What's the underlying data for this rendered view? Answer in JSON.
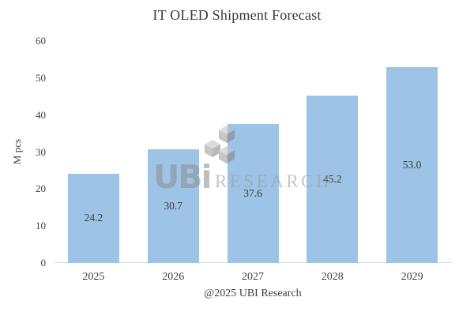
{
  "title": "IT OLED Shipment Forecast",
  "footer": "@2025 UBI Research",
  "watermark": {
    "brand": "UBi",
    "suffix": "RESEARCH"
  },
  "colors": {
    "bar": "#9DC3E6",
    "text": "#404040",
    "axis_line": "#D9D9D9",
    "watermark_grey": "#9A9A9A"
  },
  "chart_data": {
    "type": "bar",
    "title": "IT OLED Shipment Forecast",
    "categories": [
      "2025",
      "2026",
      "2027",
      "2028",
      "2029"
    ],
    "values": [
      24.2,
      30.7,
      37.6,
      45.2,
      53.0
    ],
    "value_labels": [
      "24.2",
      "30.7",
      "37.6",
      "45.2",
      "53.0"
    ],
    "xlabel": "",
    "ylabel": "M pcs",
    "ylim": [
      0,
      60
    ],
    "yticks": [
      0,
      10,
      20,
      30,
      40,
      50,
      60
    ],
    "grid": false,
    "legend": false,
    "bar_color": "#9DC3E6",
    "label_position": "center"
  }
}
